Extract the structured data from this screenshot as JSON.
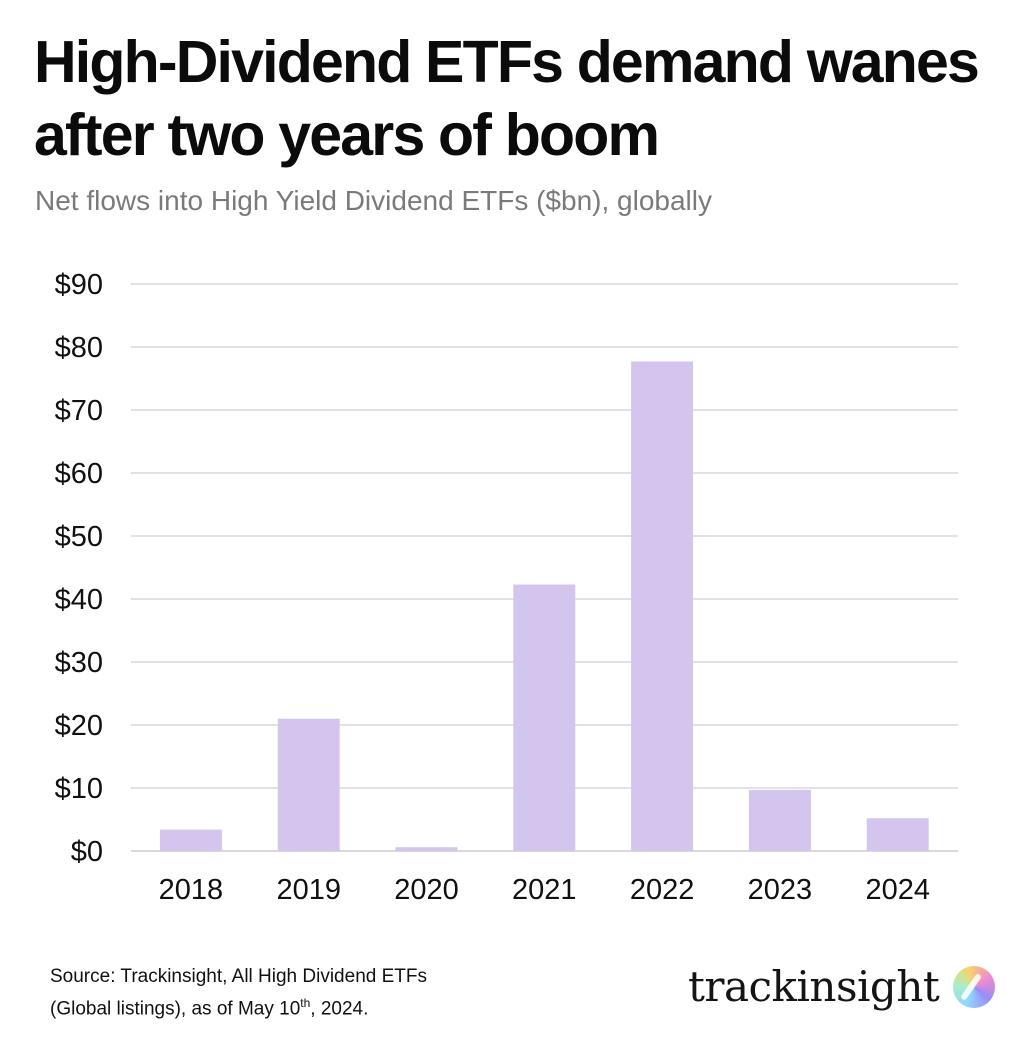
{
  "header": {
    "title": "High-Dividend ETFs demand wanes after two years of boom",
    "subtitle": "Net flows into High Yield Dividend ETFs ($bn), globally"
  },
  "chart_data": {
    "type": "bar",
    "title": "High-Dividend ETFs demand wanes after two years of boom",
    "subtitle": "Net flows into High Yield Dividend ETFs ($bn), globally",
    "categories": [
      "2018",
      "2019",
      "2020",
      "2021",
      "2022",
      "2023",
      "2024"
    ],
    "values": [
      3.4,
      21.0,
      0.6,
      42.3,
      77.7,
      9.7,
      5.2
    ],
    "y_ticks": [
      0,
      10,
      20,
      30,
      40,
      50,
      60,
      70,
      80,
      90
    ],
    "y_tick_labels": [
      "$0",
      "$10",
      "$20",
      "$30",
      "$40",
      "$50",
      "$60",
      "$70",
      "$80",
      "$90"
    ],
    "ylim": [
      0,
      90
    ],
    "xlabel": "",
    "ylabel": "",
    "grid": true,
    "legend": "none",
    "bar_color": "#d4c5ef",
    "grid_color": "#d9d9d9"
  },
  "footer": {
    "source_line1": "Source: Trackinsight, All High Dividend ETFs",
    "source_line2_prefix": "(Global listings), as of May 10",
    "source_line2_sup": "th",
    "source_line2_suffix": ", 2024.",
    "logo_text": "trackinsight",
    "logo_icon": "trackinsight-logo-icon"
  }
}
